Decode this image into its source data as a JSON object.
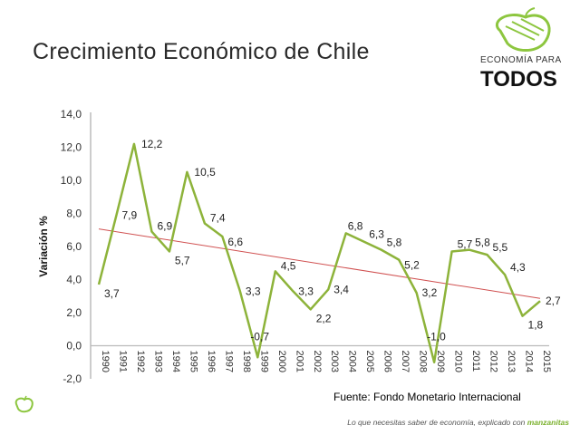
{
  "title": "Crecimiento Económico de Chile",
  "brand": {
    "line1": "ECONOMÍA PARA",
    "line2": "TODOS",
    "icon": "apple-icon"
  },
  "source": "Fuente: Fondo Monetario Internacional",
  "footer": {
    "text": "Lo que necesitas saber de economía, explicado con ",
    "highlight": "manzanitas"
  },
  "colors": {
    "series": "#8db33a",
    "trend": "#d05050",
    "accent": "#7ab02c"
  },
  "chart_data": {
    "type": "line",
    "title": "",
    "xlabel": "",
    "ylabel": "Variación %",
    "ylim": [
      -2,
      14
    ],
    "yticks": [
      "-2,0",
      "0,0",
      "2,0",
      "4,0",
      "6,0",
      "8,0",
      "10,0",
      "12,0",
      "14,0"
    ],
    "categories": [
      "1990",
      "1991",
      "1992",
      "1993",
      "1994",
      "1995",
      "1996",
      "1997",
      "1998",
      "1999",
      "2000",
      "2001",
      "2002",
      "2003",
      "2004",
      "2005",
      "2006",
      "2007",
      "2008",
      "2009",
      "2010",
      "2011",
      "2012",
      "2013",
      "2014",
      "2015"
    ],
    "series": [
      {
        "values": [
          3.7,
          7.9,
          12.2,
          6.9,
          5.7,
          10.5,
          7.4,
          6.6,
          3.3,
          -0.7,
          4.5,
          3.3,
          2.2,
          3.4,
          6.8,
          6.3,
          5.8,
          5.2,
          3.2,
          -1.0,
          5.7,
          5.8,
          5.5,
          4.3,
          1.8,
          2.7
        ]
      }
    ],
    "data_labels": [
      "3,7",
      "7,9",
      "12,2",
      "6,9",
      "5,7",
      "10,5",
      "7,4",
      "6,6",
      "3,3",
      "-0,7",
      "4,5",
      "3,3",
      "2,2",
      "3,4",
      "6,8",
      "6,3",
      "5,8",
      "5,2",
      "3,2",
      "-1,0",
      "5,7",
      "5,8",
      "5,5",
      "4,3",
      "1,8",
      "2,7"
    ],
    "trendline": "linear",
    "grid": false,
    "legend": "none"
  }
}
